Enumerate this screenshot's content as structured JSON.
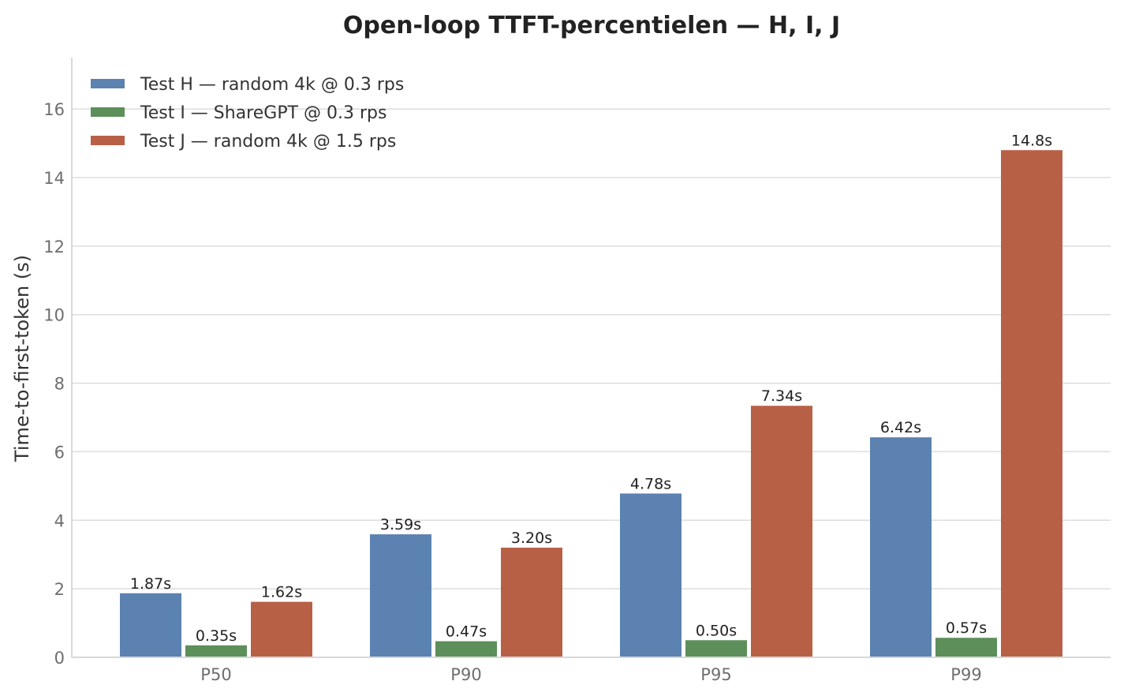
{
  "chart_data": {
    "type": "bar",
    "title": "Open-loop TTFT-percentielen — H, I, J",
    "xlabel": "",
    "ylabel": "Time-to-first-token (s)",
    "categories": [
      "P50",
      "P90",
      "P95",
      "P99"
    ],
    "ylim": [
      0,
      17.5
    ],
    "yticks": [
      0,
      2,
      4,
      6,
      8,
      10,
      12,
      14,
      16
    ],
    "grid": "horizontal",
    "legend_position": "top-left",
    "series": [
      {
        "name": "Test H — random 4k @ 0.3 rps",
        "color": "#5b82b0",
        "values": [
          1.87,
          3.59,
          4.78,
          6.42
        ],
        "labels": [
          "1.87s",
          "3.59s",
          "4.78s",
          "6.42s"
        ]
      },
      {
        "name": "Test I — ShareGPT @ 0.3 rps",
        "color": "#5c8f5a",
        "values": [
          0.35,
          0.47,
          0.5,
          0.57
        ],
        "labels": [
          "0.35s",
          "0.47s",
          "0.50s",
          "0.57s"
        ]
      },
      {
        "name": "Test J — random 4k @ 1.5 rps",
        "color": "#b86046",
        "values": [
          1.62,
          3.2,
          7.34,
          14.8
        ],
        "labels": [
          "1.62s",
          "3.20s",
          "7.34s",
          "14.8s"
        ]
      }
    ]
  }
}
